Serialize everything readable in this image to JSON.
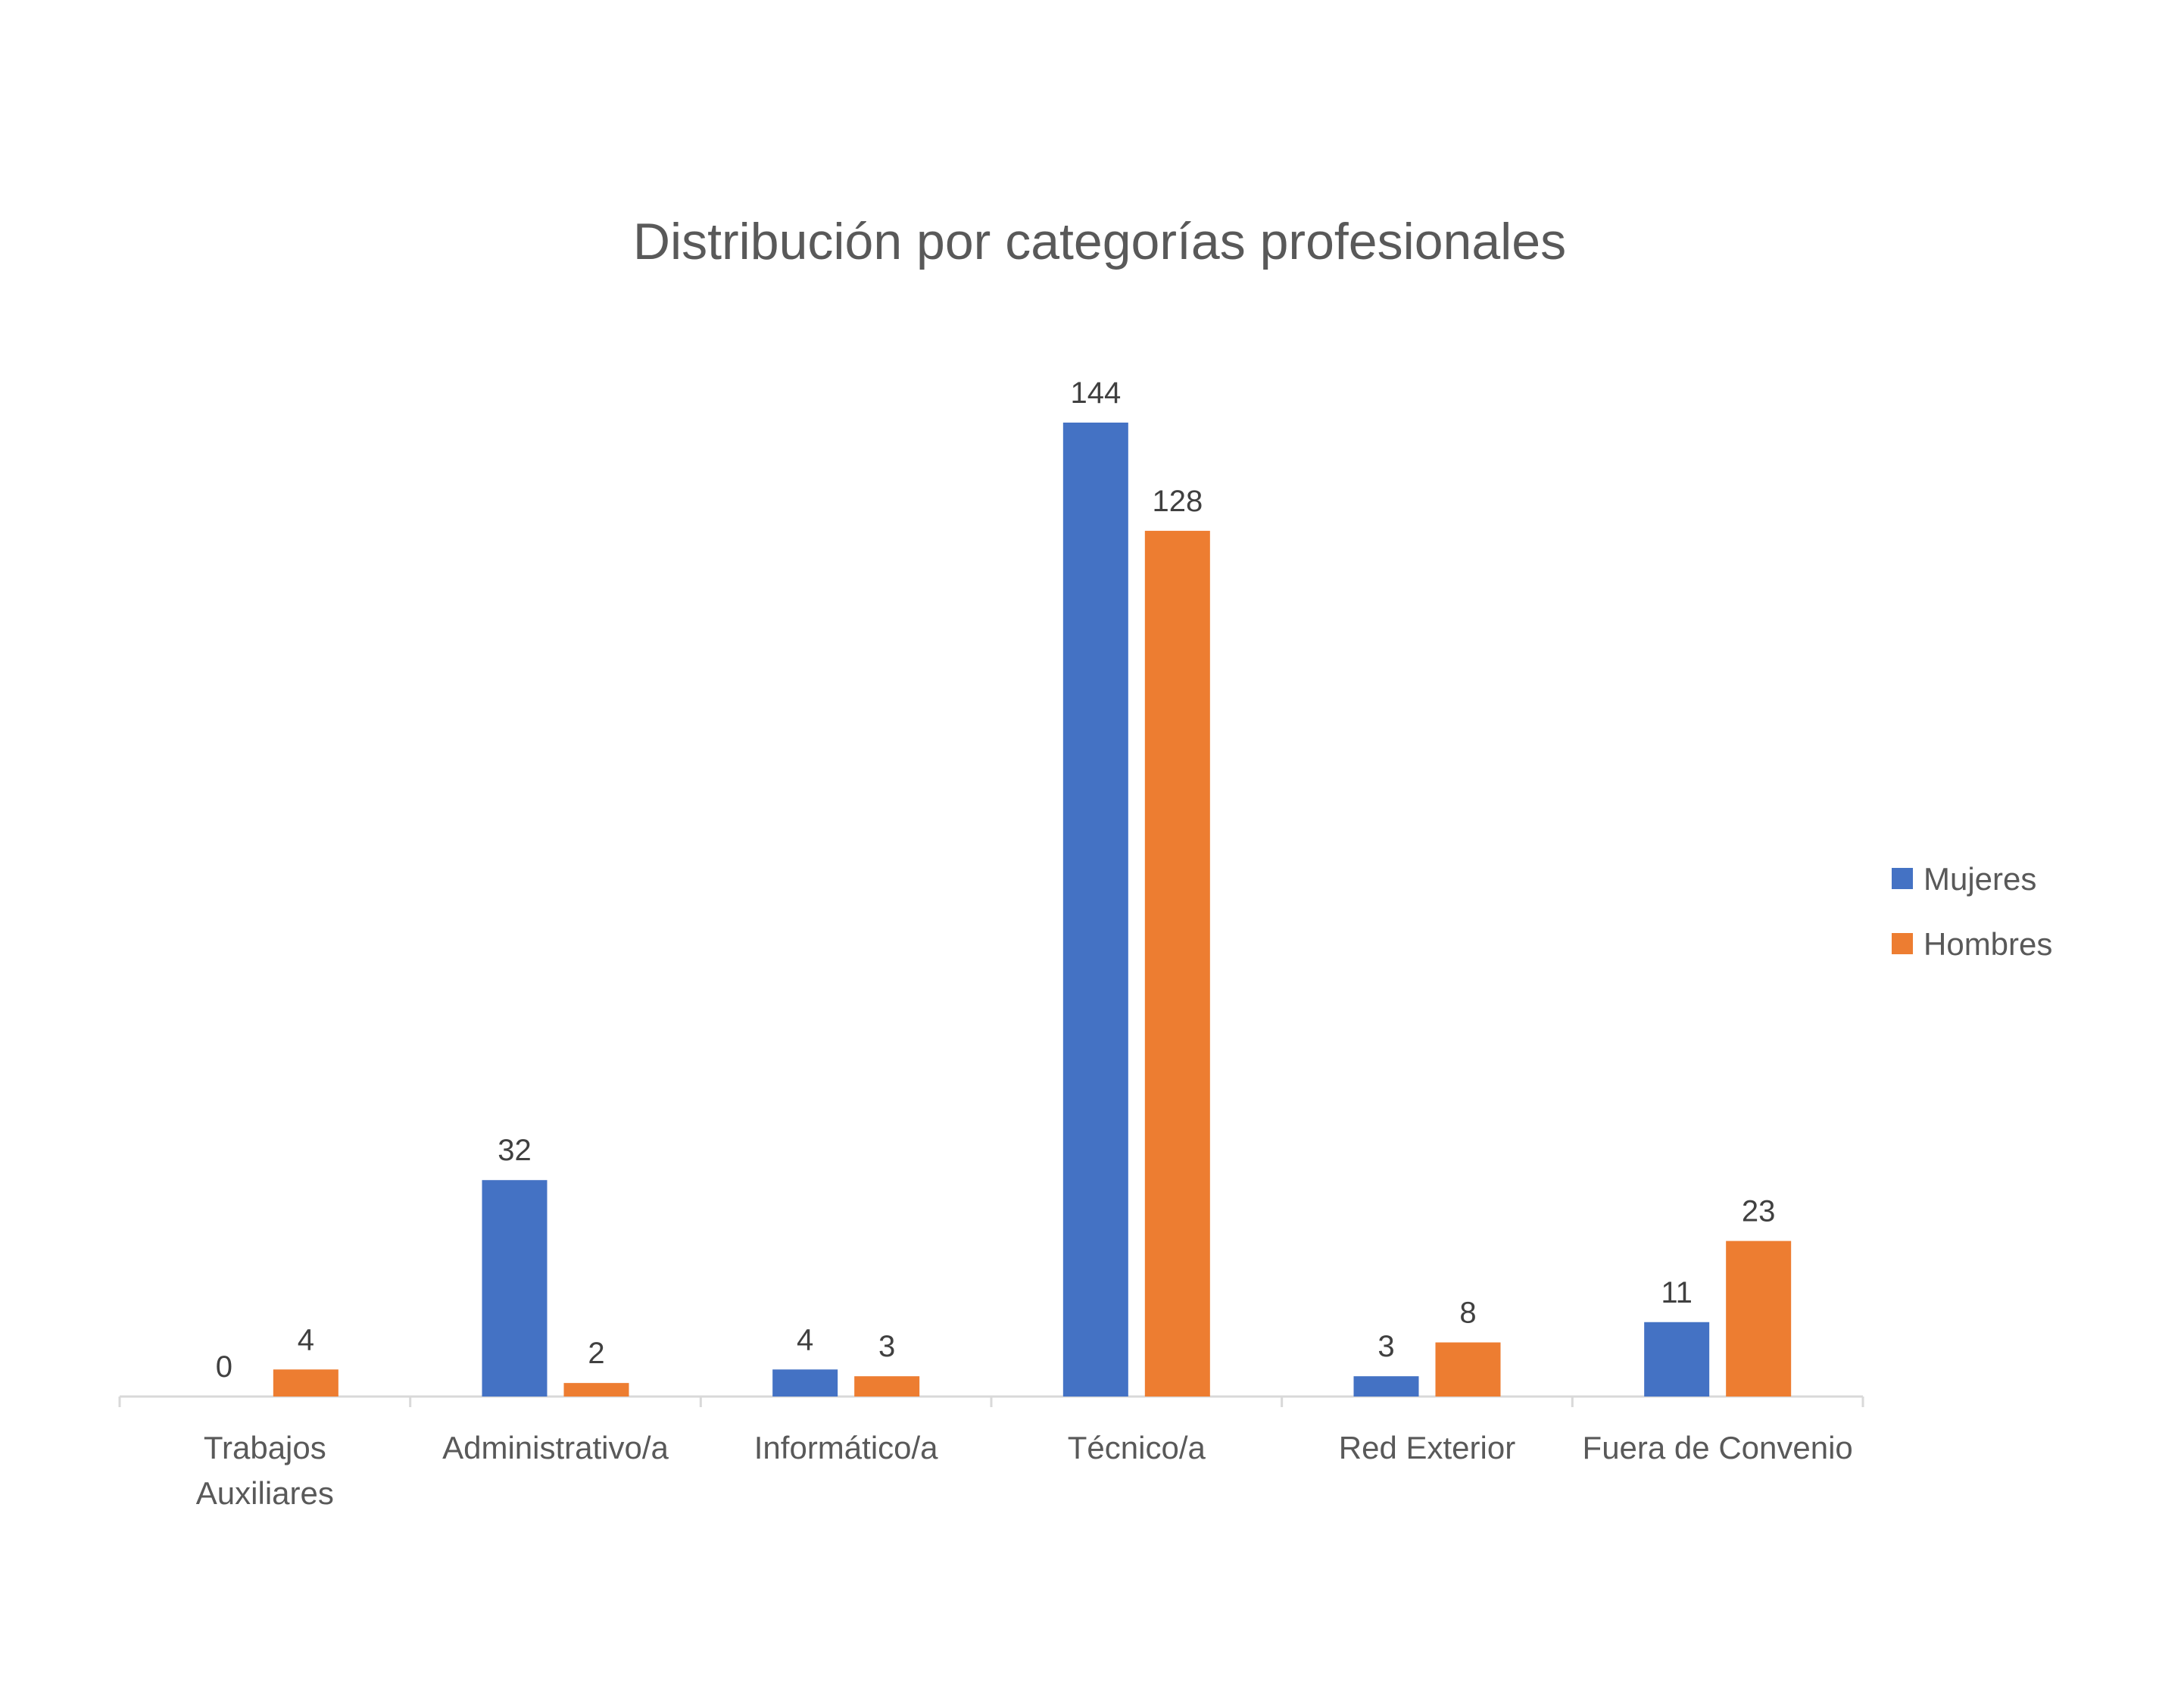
{
  "chart_data": {
    "type": "bar",
    "title": "Distribución por categorías profesionales",
    "xlabel": "",
    "ylabel": "",
    "categories": [
      [
        "Trabajos",
        "Auxiliares"
      ],
      [
        "Administrativo/a"
      ],
      [
        "Informático/a"
      ],
      [
        "Técnico/a"
      ],
      [
        "Red Exterior"
      ],
      [
        "Fuera de Convenio"
      ]
    ],
    "series": [
      {
        "name": "Mujeres",
        "color": "#4472C4",
        "values": [
          0,
          32,
          4,
          144,
          3,
          11
        ]
      },
      {
        "name": "Hombres",
        "color": "#ED7D31",
        "values": [
          4,
          2,
          3,
          128,
          8,
          23
        ]
      }
    ],
    "ylim": [
      0,
      144
    ],
    "grid": false,
    "legend_position": "right",
    "data_labels": true
  }
}
